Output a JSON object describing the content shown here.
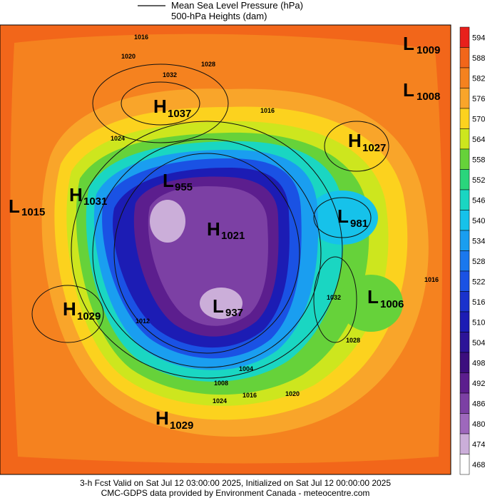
{
  "legend": {
    "pressure": "Mean Sea Level Pressure (hPa)",
    "heights": "500-hPa Heights (dam)"
  },
  "colorbar": {
    "levels": [
      594,
      588,
      582,
      576,
      570,
      564,
      558,
      552,
      546,
      540,
      534,
      528,
      522,
      516,
      510,
      504,
      498,
      492,
      486,
      480,
      474,
      468
    ],
    "colors": [
      "#e8201c",
      "#f2661a",
      "#f5821f",
      "#f9a52a",
      "#fcd21e",
      "#cde61e",
      "#66d23a",
      "#2ad57c",
      "#1ad6c2",
      "#16c2ea",
      "#1a9ef0",
      "#1a78ee",
      "#1a52e4",
      "#1a32cc",
      "#1c1cb4",
      "#2c1498",
      "#3c0e7e",
      "#5c1e8e",
      "#7c40a4",
      "#9e68bc",
      "#cbaed9",
      "#ffffff"
    ]
  },
  "centers": [
    {
      "letter": "L",
      "value": "1009"
    },
    {
      "letter": "L",
      "value": "1008"
    },
    {
      "letter": "H",
      "value": "1037"
    },
    {
      "letter": "H",
      "value": "1027"
    },
    {
      "letter": "L",
      "value": "955"
    },
    {
      "letter": "H",
      "value": "1031"
    },
    {
      "letter": "L",
      "value": "1015"
    },
    {
      "letter": "H",
      "value": "1021"
    },
    {
      "letter": "L",
      "value": "981"
    },
    {
      "letter": "L",
      "value": "1006"
    },
    {
      "letter": "H",
      "value": "1029"
    },
    {
      "letter": "L",
      "value": "937"
    },
    {
      "letter": "H",
      "value": "1029"
    }
  ],
  "contour_labels": [
    "1016",
    "1020",
    "1028",
    "1032",
    "1024",
    "1016",
    "1012",
    "1008",
    "1004",
    "1016",
    "1020",
    "1024",
    "1032",
    "1028",
    "1016"
  ],
  "footer": {
    "line1": "3-h Fcst Valid on Sat Jul 12 03:00:00 2025, Initialized on Sat Jul 12 00:00:00 2025",
    "line2": "CMC-GDPS data provided by Environment Canada - meteocentre.com"
  }
}
